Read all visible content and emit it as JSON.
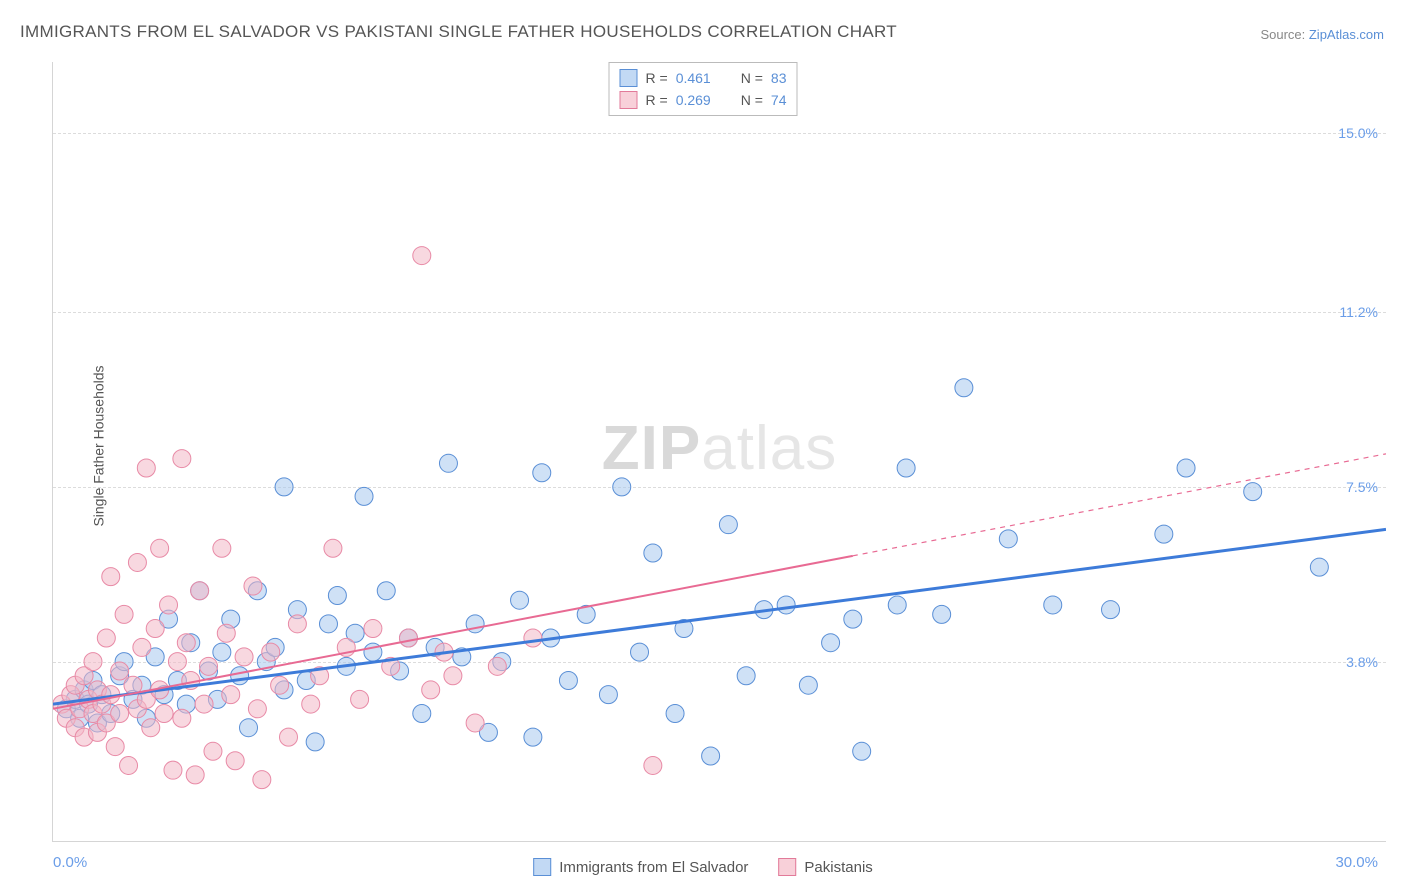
{
  "title": "IMMIGRANTS FROM EL SALVADOR VS PAKISTANI SINGLE FATHER HOUSEHOLDS CORRELATION CHART",
  "source_label": "Source: ",
  "source_value": "ZipAtlas.com",
  "ylabel": "Single Father Households",
  "watermark_a": "ZIP",
  "watermark_b": "atlas",
  "chart": {
    "type": "scatter",
    "xlim": [
      0,
      30
    ],
    "ylim": [
      0,
      16.5
    ],
    "yticks": [
      {
        "value": 3.8,
        "label": "3.8%"
      },
      {
        "value": 7.5,
        "label": "7.5%"
      },
      {
        "value": 11.2,
        "label": "11.2%"
      },
      {
        "value": 15.0,
        "label": "15.0%"
      }
    ],
    "xtick_left": "0.0%",
    "xtick_right": "30.0%",
    "marker_radius": 9,
    "marker_opacity": 0.55,
    "background_color": "#ffffff",
    "grid_color": "#dcdcdc",
    "series": [
      {
        "key": "blue",
        "label": "Immigrants from El Salvador",
        "fill": "#a7c9ee",
        "stroke": "#5a8fd6",
        "trend_color": "#3d7bd9",
        "trend_width": 3,
        "trend": {
          "y_at_x0": 2.9,
          "y_at_xmax": 6.6,
          "solid_until_x": 30
        },
        "R": "0.461",
        "N": "83",
        "points": [
          [
            0.3,
            2.8
          ],
          [
            0.5,
            3.0
          ],
          [
            0.6,
            2.6
          ],
          [
            0.7,
            3.2
          ],
          [
            0.8,
            2.9
          ],
          [
            0.9,
            3.4
          ],
          [
            1.0,
            2.5
          ],
          [
            1.1,
            3.1
          ],
          [
            1.3,
            2.7
          ],
          [
            1.5,
            3.5
          ],
          [
            1.6,
            3.8
          ],
          [
            1.8,
            3.0
          ],
          [
            2.0,
            3.3
          ],
          [
            2.1,
            2.6
          ],
          [
            2.3,
            3.9
          ],
          [
            2.5,
            3.1
          ],
          [
            2.6,
            4.7
          ],
          [
            2.8,
            3.4
          ],
          [
            3.0,
            2.9
          ],
          [
            3.1,
            4.2
          ],
          [
            3.3,
            5.3
          ],
          [
            3.5,
            3.6
          ],
          [
            3.7,
            3.0
          ],
          [
            3.8,
            4.0
          ],
          [
            4.0,
            4.7
          ],
          [
            4.2,
            3.5
          ],
          [
            4.4,
            2.4
          ],
          [
            4.6,
            5.3
          ],
          [
            4.8,
            3.8
          ],
          [
            5.0,
            4.1
          ],
          [
            5.2,
            7.5
          ],
          [
            5.2,
            3.2
          ],
          [
            5.5,
            4.9
          ],
          [
            5.7,
            3.4
          ],
          [
            5.9,
            2.1
          ],
          [
            6.2,
            4.6
          ],
          [
            6.4,
            5.2
          ],
          [
            6.6,
            3.7
          ],
          [
            6.8,
            4.4
          ],
          [
            7.0,
            7.3
          ],
          [
            7.2,
            4.0
          ],
          [
            7.5,
            5.3
          ],
          [
            7.8,
            3.6
          ],
          [
            8.0,
            4.3
          ],
          [
            8.3,
            2.7
          ],
          [
            8.6,
            4.1
          ],
          [
            8.9,
            8.0
          ],
          [
            9.2,
            3.9
          ],
          [
            9.5,
            4.6
          ],
          [
            9.8,
            2.3
          ],
          [
            10.1,
            3.8
          ],
          [
            10.5,
            5.1
          ],
          [
            10.8,
            2.2
          ],
          [
            11.0,
            7.8
          ],
          [
            11.2,
            4.3
          ],
          [
            11.6,
            3.4
          ],
          [
            12.0,
            4.8
          ],
          [
            12.5,
            3.1
          ],
          [
            12.8,
            7.5
          ],
          [
            13.2,
            4.0
          ],
          [
            13.5,
            6.1
          ],
          [
            14.0,
            2.7
          ],
          [
            14.2,
            4.5
          ],
          [
            14.8,
            1.8
          ],
          [
            15.2,
            6.7
          ],
          [
            15.6,
            3.5
          ],
          [
            16.0,
            4.9
          ],
          [
            16.5,
            5.0
          ],
          [
            17.0,
            3.3
          ],
          [
            17.5,
            4.2
          ],
          [
            18.0,
            4.7
          ],
          [
            18.2,
            1.9
          ],
          [
            19.0,
            5.0
          ],
          [
            19.2,
            7.9
          ],
          [
            20.0,
            4.8
          ],
          [
            20.5,
            9.6
          ],
          [
            21.5,
            6.4
          ],
          [
            22.5,
            5.0
          ],
          [
            23.8,
            4.9
          ],
          [
            25.0,
            6.5
          ],
          [
            25.5,
            7.9
          ],
          [
            27.0,
            7.4
          ],
          [
            28.5,
            5.8
          ]
        ]
      },
      {
        "key": "pink",
        "label": "Pakistanis",
        "fill": "#f2b8c7",
        "stroke": "#e88aa6",
        "trend_color": "#e86a93",
        "trend_width": 2,
        "trend": {
          "y_at_x0": 2.8,
          "y_at_xmax": 8.2,
          "solid_until_x": 18
        },
        "R": "0.269",
        "N": "74",
        "points": [
          [
            0.2,
            2.9
          ],
          [
            0.3,
            2.6
          ],
          [
            0.4,
            3.1
          ],
          [
            0.5,
            2.4
          ],
          [
            0.5,
            3.3
          ],
          [
            0.6,
            2.8
          ],
          [
            0.7,
            3.5
          ],
          [
            0.7,
            2.2
          ],
          [
            0.8,
            3.0
          ],
          [
            0.9,
            2.7
          ],
          [
            0.9,
            3.8
          ],
          [
            1.0,
            2.3
          ],
          [
            1.0,
            3.2
          ],
          [
            1.1,
            2.9
          ],
          [
            1.2,
            4.3
          ],
          [
            1.2,
            2.5
          ],
          [
            1.3,
            5.6
          ],
          [
            1.3,
            3.1
          ],
          [
            1.4,
            2.0
          ],
          [
            1.5,
            3.6
          ],
          [
            1.5,
            2.7
          ],
          [
            1.6,
            4.8
          ],
          [
            1.7,
            1.6
          ],
          [
            1.8,
            3.3
          ],
          [
            1.9,
            5.9
          ],
          [
            1.9,
            2.8
          ],
          [
            2.0,
            4.1
          ],
          [
            2.1,
            7.9
          ],
          [
            2.1,
            3.0
          ],
          [
            2.2,
            2.4
          ],
          [
            2.3,
            4.5
          ],
          [
            2.4,
            6.2
          ],
          [
            2.4,
            3.2
          ],
          [
            2.5,
            2.7
          ],
          [
            2.6,
            5.0
          ],
          [
            2.7,
            1.5
          ],
          [
            2.8,
            3.8
          ],
          [
            2.9,
            8.1
          ],
          [
            2.9,
            2.6
          ],
          [
            3.0,
            4.2
          ],
          [
            3.1,
            3.4
          ],
          [
            3.2,
            1.4
          ],
          [
            3.3,
            5.3
          ],
          [
            3.4,
            2.9
          ],
          [
            3.5,
            3.7
          ],
          [
            3.6,
            1.9
          ],
          [
            3.8,
            6.2
          ],
          [
            3.9,
            4.4
          ],
          [
            4.0,
            3.1
          ],
          [
            4.1,
            1.7
          ],
          [
            4.3,
            3.9
          ],
          [
            4.5,
            5.4
          ],
          [
            4.6,
            2.8
          ],
          [
            4.7,
            1.3
          ],
          [
            4.9,
            4.0
          ],
          [
            5.1,
            3.3
          ],
          [
            5.3,
            2.2
          ],
          [
            5.5,
            4.6
          ],
          [
            5.8,
            2.9
          ],
          [
            6.0,
            3.5
          ],
          [
            6.3,
            6.2
          ],
          [
            6.6,
            4.1
          ],
          [
            6.9,
            3.0
          ],
          [
            7.2,
            4.5
          ],
          [
            7.6,
            3.7
          ],
          [
            8.0,
            4.3
          ],
          [
            8.3,
            12.4
          ],
          [
            8.5,
            3.2
          ],
          [
            8.8,
            4.0
          ],
          [
            9.0,
            3.5
          ],
          [
            9.5,
            2.5
          ],
          [
            10.0,
            3.7
          ],
          [
            10.8,
            4.3
          ],
          [
            13.5,
            1.6
          ]
        ]
      }
    ]
  },
  "legend_top": {
    "r_label": "R  =",
    "n_label": "N  ="
  }
}
